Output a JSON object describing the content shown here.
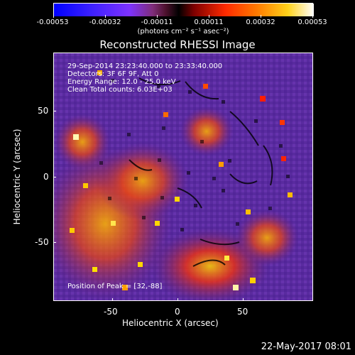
{
  "colorbar": {
    "labels": [
      "-0.00053",
      "-0.00032",
      "-0.00011",
      "0.00011",
      "0.00032",
      "0.00053"
    ],
    "units": "(photons cm⁻² s⁻¹ asec⁻²)"
  },
  "title": "Reconstructed RHESSI Image",
  "overlay": {
    "line1": "29-Sep-2014 23:23:40.000 to 23:33:40.000",
    "line2": "Detectors: 3F 6F 9F, Att 0",
    "line3": "Energy Range: 12.0 - 25.0 keV",
    "line4": "Clean    Total counts: 6.03E+03",
    "peak": "Position of Peak = [32,-88]"
  },
  "axes": {
    "x_label": "Heliocentric X (arcsec)",
    "y_label": "Heliocentric Y (arcsec)",
    "x_ticks": [
      "-50",
      "0",
      "50"
    ],
    "y_ticks": [
      "50",
      "0",
      "-50"
    ]
  },
  "timestamp": "22-May-2017 08:01"
}
